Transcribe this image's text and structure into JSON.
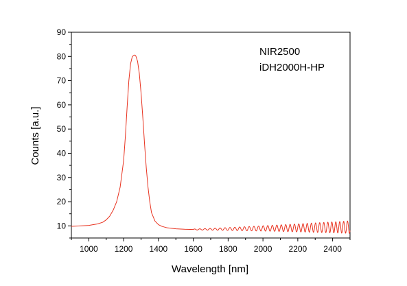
{
  "chart_data": {
    "type": "line",
    "xlabel": "Wavelength [nm]",
    "ylabel": "Counts [a.u.]",
    "xlim": [
      900,
      2500
    ],
    "ylim": [
      5,
      90
    ],
    "x_major_ticks": [
      1000,
      1200,
      1400,
      1600,
      1800,
      2000,
      2200,
      2400
    ],
    "x_minor_step": 100,
    "y_major_ticks": [
      10,
      20,
      30,
      40,
      50,
      60,
      70,
      80,
      90
    ],
    "y_minor_step": 5,
    "x_tick_labels": [
      "1000",
      "1200",
      "1400",
      "1600",
      "1800",
      "2000",
      "2200",
      "2400"
    ],
    "y_tick_labels": [
      "10",
      "20",
      "30",
      "40",
      "50",
      "60",
      "70",
      "80",
      "90"
    ],
    "annotations": [
      "NIR2500",
      "iDH2000H-HP"
    ],
    "grid": false,
    "series": [
      {
        "color": "#e8321f",
        "x": [
          900,
          950,
          1000,
          1050,
          1080,
          1100,
          1120,
          1140,
          1160,
          1180,
          1200,
          1210,
          1220,
          1230,
          1240,
          1250,
          1260,
          1265,
          1270,
          1280,
          1290,
          1300,
          1310,
          1320,
          1330,
          1340,
          1350,
          1360,
          1380,
          1400,
          1420,
          1450,
          1500,
          1550,
          1600
        ],
        "y": [
          9.8,
          10.0,
          10.2,
          10.8,
          11.5,
          12.5,
          14.0,
          16.5,
          20.0,
          26.0,
          37.0,
          47.0,
          59.0,
          70.0,
          77.0,
          80.0,
          80.5,
          80.6,
          80.2,
          78.0,
          73.0,
          65.0,
          55.0,
          44.0,
          34.0,
          26.0,
          20.0,
          15.5,
          12.0,
          10.5,
          9.8,
          9.2,
          8.8,
          8.6,
          8.5
        ],
        "ripple": {
          "start": 1600,
          "end": 2500,
          "baseline_start": 8.5,
          "baseline_end": 9.5,
          "amplitude_start": 0.2,
          "amplitude_end": 2.6,
          "period_start": 30,
          "period_end": 22
        }
      }
    ]
  }
}
